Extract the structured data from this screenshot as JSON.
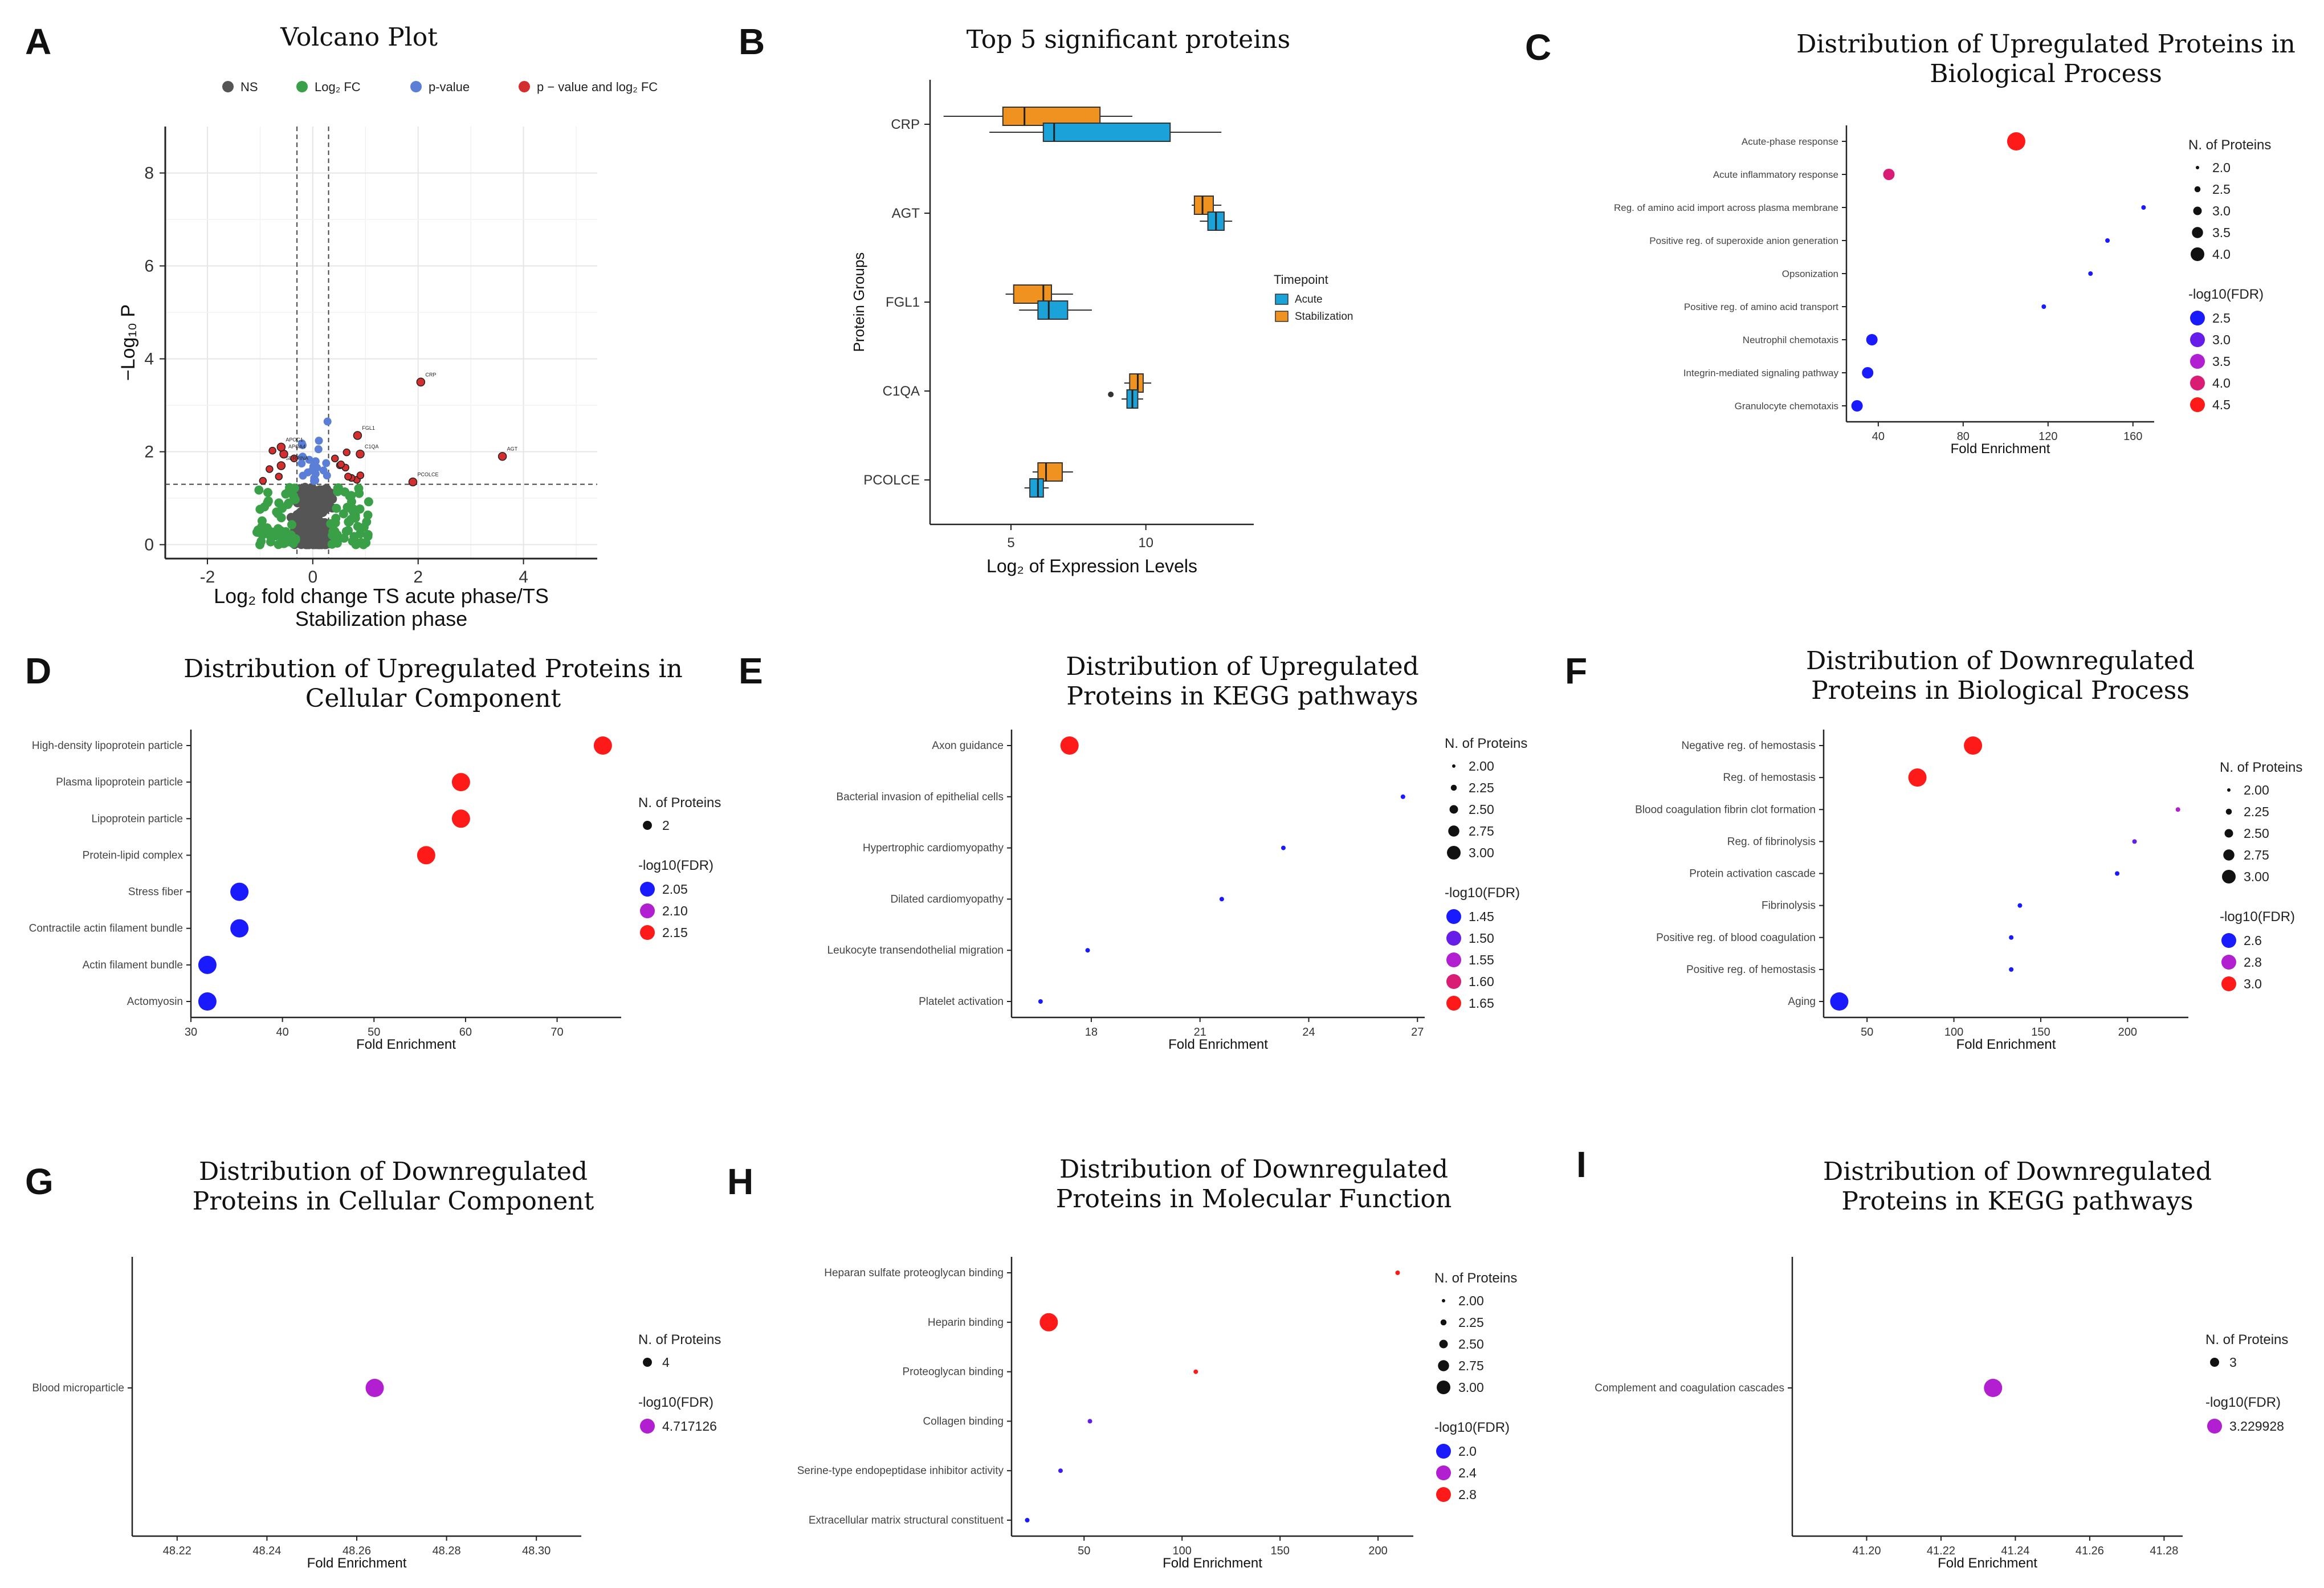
{
  "panels": [
    {
      "id": "A",
      "letter": "A",
      "title": [
        "Volcano Plot"
      ]
    },
    {
      "id": "B",
      "letter": "B",
      "title": [
        "Top 5 significant proteins"
      ]
    },
    {
      "id": "C",
      "letter": "C",
      "title": [
        "Distribution of Upregulated  Proteins in",
        "Biological Process"
      ]
    },
    {
      "id": "D",
      "letter": "D",
      "title": [
        "Distribution of Upregulated  Proteins in",
        "Cellular Component"
      ]
    },
    {
      "id": "E",
      "letter": "E",
      "title": [
        "Distribution of Upregulated",
        "Proteins in KEGG pathways"
      ]
    },
    {
      "id": "F",
      "letter": "F",
      "title": [
        "Distribution of Downregulated",
        "Proteins in Biological Process"
      ]
    },
    {
      "id": "G",
      "letter": "G",
      "title": [
        "Distribution of Downregulated",
        "Proteins in Cellular Component"
      ]
    },
    {
      "id": "H",
      "letter": "H",
      "title": [
        "Distribution of Downregulated",
        "Proteins in Molecular Function"
      ]
    },
    {
      "id": "I",
      "letter": "I",
      "title": [
        "Distribution of Downregulated",
        "Proteins in KEGG pathways"
      ]
    }
  ],
  "chart_data": [
    {
      "id": "A",
      "type": "scatter",
      "title": "Volcano Plot",
      "legend": [
        {
          "label": "NS",
          "color": "#555555"
        },
        {
          "label": "Log₂ FC",
          "color": "#3aa047"
        },
        {
          "label": "p-value",
          "color": "#5b7fd6"
        },
        {
          "label": "p − value and log₂ FC",
          "color": "#d32f2f"
        }
      ],
      "xlabel_line1": "Log₂ fold change TS acute phase/TS",
      "xlabel_line2": "Stabilization phase",
      "ylabel": "−Log₁₀ P",
      "xlim": [
        -2.8,
        5.4
      ],
      "ylim": [
        -0.3,
        9
      ],
      "xticks": [
        -2,
        0,
        2,
        4
      ],
      "yticks": [
        0,
        2,
        4,
        6,
        8
      ],
      "fc_cutoff": [
        -0.3,
        0.3
      ],
      "p_cutoff": 1.3,
      "labeled_points": [
        {
          "x": 2.05,
          "y": 3.5,
          "label": "CRP"
        },
        {
          "x": 3.6,
          "y": 1.9,
          "label": "AGT"
        },
        {
          "x": 0.85,
          "y": 2.35,
          "label": "FGL1"
        },
        {
          "x": 0.9,
          "y": 1.95,
          "label": "C1QA"
        },
        {
          "x": 1.9,
          "y": 1.35,
          "label": "PCOLCE"
        },
        {
          "x": -0.55,
          "y": 1.95,
          "label": "APOA4"
        },
        {
          "x": -0.6,
          "y": 2.1,
          "label": "APOC1"
        },
        {
          "x": -0.6,
          "y": 1.7,
          "label": "SERPINA"
        }
      ]
    },
    {
      "id": "B",
      "type": "box",
      "title": "Top 5 significant proteins",
      "xlabel": "Log₂ of Expression Levels",
      "ylabel": "Protein Groups",
      "xlim": [
        2,
        14
      ],
      "xticks": [
        5,
        10
      ],
      "legend_title": "Timepoint",
      "series": [
        {
          "name": "Acute",
          "color": "#1ba3d9"
        },
        {
          "name": "Stabilization",
          "color": "#f0921f"
        }
      ],
      "categories": [
        "CRP",
        "AGT",
        "FGL1",
        "C1QA",
        "PCOLCE"
      ],
      "boxes": {
        "CRP": {
          "Stabilization": [
            2.5,
            4.7,
            5.5,
            8.3,
            9.5
          ],
          "Acute": [
            4.2,
            6.2,
            6.6,
            10.9,
            12.8
          ]
        },
        "AGT": {
          "Stabilization": [
            11.7,
            11.8,
            12.1,
            12.5,
            12.8
          ],
          "Acute": [
            12.0,
            12.3,
            12.6,
            12.9,
            13.2
          ]
        },
        "FGL1": {
          "Stabilization": [
            4.8,
            5.1,
            6.2,
            6.5,
            7.3
          ],
          "Acute": [
            5.3,
            6.0,
            6.4,
            7.1,
            8.0
          ]
        },
        "C1QA": {
          "Stabilization": [
            9.2,
            9.4,
            9.7,
            9.9,
            10.2
          ],
          "Acute": [
            9.1,
            9.3,
            9.5,
            9.7,
            9.9
          ]
        },
        "PCOLCE": {
          "Stabilization": [
            5.8,
            6.0,
            6.3,
            6.9,
            7.3
          ],
          "Acute": [
            5.5,
            5.7,
            6.0,
            6.2,
            6.4
          ]
        }
      },
      "outliers": [
        {
          "category": "C1QA",
          "x": 8.7
        }
      ]
    },
    {
      "id": "C",
      "type": "scatter",
      "xlabel": "Fold Enrichment",
      "xlim": [
        25,
        170
      ],
      "xticks": [
        40,
        80,
        120,
        160
      ],
      "size_title": "N. of Proteins",
      "size_legend": [
        "2.0",
        "2.5",
        "3.0",
        "3.5",
        "4.0"
      ],
      "color_title": "-log10(FDR)",
      "color_legend": [
        "2.5",
        "3.0",
        "3.5",
        "4.0",
        "4.5"
      ],
      "size_range": [
        2,
        4
      ],
      "color_range": [
        2.5,
        4.5
      ],
      "terms": [
        "Acute-phase response",
        "Acute inflammatory response",
        "Reg. of amino acid import across plasma membrane",
        "Positive reg. of superoxide anion generation",
        "Opsonization",
        "Positive reg. of amino acid transport",
        "Neutrophil chemotaxis",
        "Integrin-mediated signaling pathway",
        "Granulocyte chemotaxis"
      ],
      "x": [
        105,
        45,
        165,
        148,
        140,
        118,
        37,
        35,
        30
      ],
      "n": [
        4,
        3,
        2,
        2,
        2,
        2,
        3,
        3,
        3
      ],
      "fdr": [
        4.6,
        4.0,
        2.5,
        2.5,
        2.5,
        2.5,
        2.5,
        2.5,
        2.5
      ]
    },
    {
      "id": "D",
      "type": "scatter",
      "xlabel": "Fold Enrichment",
      "xlim": [
        30,
        77
      ],
      "xticks": [
        30,
        40,
        50,
        60,
        70
      ],
      "size_title": "N. of Proteins",
      "size_legend": [
        "2"
      ],
      "color_title": "-log10(FDR)",
      "color_legend": [
        "2.05",
        "2.10",
        "2.15"
      ],
      "size_range": [
        2,
        2
      ],
      "color_range": [
        2.05,
        2.15
      ],
      "terms": [
        "High-density lipoprotein particle",
        "Plasma lipoprotein particle",
        "Lipoprotein particle",
        "Protein-lipid complex",
        "Stress fiber",
        "Contractile actin filament bundle",
        "Actin filament bundle",
        "Actomyosin"
      ],
      "x": [
        75,
        59.5,
        59.5,
        55.7,
        35.3,
        35.3,
        31.8,
        31.8
      ],
      "n": [
        2,
        2,
        2,
        2,
        2,
        2,
        2,
        2
      ],
      "fdr": [
        2.17,
        2.17,
        2.17,
        2.17,
        2.0,
        2.0,
        2.0,
        2.0
      ]
    },
    {
      "id": "E",
      "type": "scatter",
      "xlabel": "Fold Enrichment",
      "xlim": [
        15.8,
        27.2
      ],
      "xticks": [
        18,
        21,
        24,
        27
      ],
      "size_title": "N. of Proteins",
      "size_legend": [
        "2.00",
        "2.25",
        "2.50",
        "2.75",
        "3.00"
      ],
      "color_title": "-log10(FDR)",
      "color_legend": [
        "1.45",
        "1.50",
        "1.55",
        "1.60",
        "1.65"
      ],
      "size_range": [
        2,
        3
      ],
      "color_range": [
        1.45,
        1.65
      ],
      "terms": [
        "Axon guidance",
        "Bacterial invasion of epithelial cells",
        "Hypertrophic cardiomyopathy",
        "Dilated cardiomyopathy",
        "Leukocyte transendothelial migration",
        "Platelet activation"
      ],
      "x": [
        17.4,
        26.6,
        23.3,
        21.6,
        17.9,
        16.6
      ],
      "n": [
        3,
        2,
        2,
        2,
        2,
        2
      ],
      "fdr": [
        1.68,
        1.45,
        1.45,
        1.42,
        1.42,
        1.42
      ]
    },
    {
      "id": "F",
      "type": "scatter",
      "xlabel": "Fold Enrichment",
      "xlim": [
        25,
        235
      ],
      "xticks": [
        50,
        100,
        150,
        200
      ],
      "size_title": "N. of Proteins",
      "size_legend": [
        "2.00",
        "2.25",
        "2.50",
        "2.75",
        "3.00"
      ],
      "color_title": "-log10(FDR)",
      "color_legend": [
        "2.6",
        "2.8",
        "3.0"
      ],
      "size_range": [
        2,
        3
      ],
      "color_range": [
        2.6,
        3.0
      ],
      "terms": [
        "Negative reg. of hemostasis",
        "Reg. of hemostasis",
        "Blood coagulation fibrin clot formation",
        "Reg. of fibrinolysis",
        "Protein activation cascade",
        "Fibrinolysis",
        "Positive reg. of blood coagulation",
        "Positive reg. of hemostasis",
        "Aging"
      ],
      "x": [
        111,
        79,
        229,
        204,
        194,
        138,
        133,
        133,
        34
      ],
      "n": [
        3,
        3,
        2,
        2,
        2,
        2,
        2,
        2,
        3
      ],
      "fdr": [
        3.1,
        3.0,
        2.8,
        2.7,
        2.5,
        2.5,
        2.5,
        2.5,
        2.5
      ]
    },
    {
      "id": "G",
      "type": "scatter",
      "xlabel": "Fold Enrichment",
      "xlim": [
        48.21,
        48.31
      ],
      "xticks": [
        48.22,
        48.24,
        48.26,
        48.28,
        48.3
      ],
      "xticklabels": [
        "48.22",
        "48.24",
        "48.26",
        "48.28",
        "48.30"
      ],
      "size_title": "N. of Proteins",
      "size_legend": [
        "4"
      ],
      "color_title": "-log10(FDR)",
      "color_legend": [
        "4.717126"
      ],
      "size_range": [
        4,
        4
      ],
      "color_range": [
        4.717126,
        4.717126
      ],
      "terms": [
        "Blood microparticle"
      ],
      "x": [
        48.264
      ],
      "n": [
        4
      ],
      "fdr": [
        4.717126
      ]
    },
    {
      "id": "H",
      "type": "scatter",
      "xlabel": "Fold Enrichment",
      "xlim": [
        13,
        218
      ],
      "xticks": [
        50,
        100,
        150,
        200
      ],
      "size_title": "N. of Proteins",
      "size_legend": [
        "2.00",
        "2.25",
        "2.50",
        "2.75",
        "3.00"
      ],
      "color_title": "-log10(FDR)",
      "color_legend": [
        "2.0",
        "2.4",
        "2.8"
      ],
      "size_range": [
        2,
        3
      ],
      "color_range": [
        2.0,
        2.8
      ],
      "terms": [
        "Heparan sulfate proteoglycan binding",
        "Heparin binding",
        "Proteoglycan binding",
        "Collagen binding",
        "Serine-type endopeptidase inhibitor activity",
        "Extracellular matrix structural constituent"
      ],
      "x": [
        210,
        32,
        107,
        53,
        38,
        21
      ],
      "n": [
        2,
        3,
        2,
        2,
        2,
        2
      ],
      "fdr": [
        2.9,
        2.9,
        2.8,
        2.2,
        2.1,
        1.9
      ]
    },
    {
      "id": "I",
      "type": "scatter",
      "xlabel": "Fold Enrichment",
      "xlim": [
        41.18,
        41.285
      ],
      "xticks": [
        41.2,
        41.22,
        41.24,
        41.26,
        41.28
      ],
      "xticklabels": [
        "41.20",
        "41.22",
        "41.24",
        "41.26",
        "41.28"
      ],
      "size_title": "N. of Proteins",
      "size_legend": [
        "3"
      ],
      "color_title": "-log10(FDR)",
      "color_legend": [
        "3.229928"
      ],
      "size_range": [
        3,
        3
      ],
      "color_range": [
        3.229928,
        3.229928
      ],
      "terms": [
        "Complement and coagulation cascades"
      ],
      "x": [
        41.234
      ],
      "n": [
        3
      ],
      "fdr": [
        3.229928
      ]
    }
  ],
  "colors": {
    "low": "#1a1aff",
    "mid": "#b21fd0",
    "high": "#ff1a1a"
  }
}
